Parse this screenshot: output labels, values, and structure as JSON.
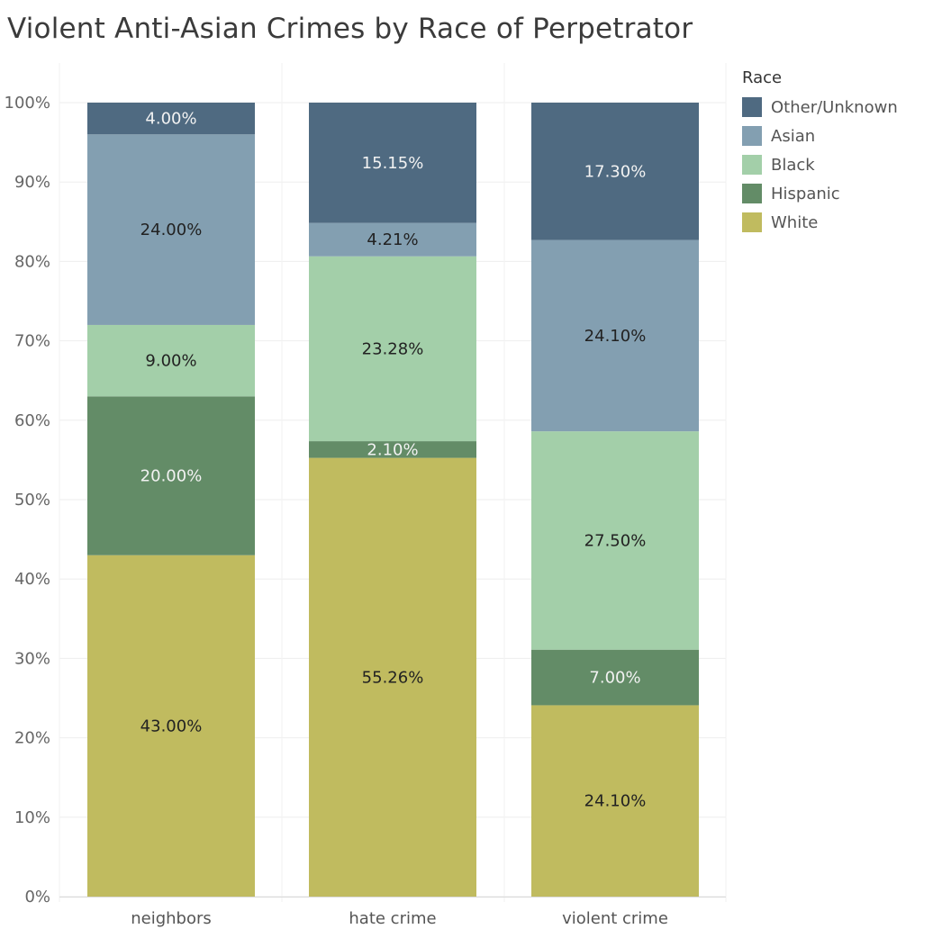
{
  "chart_data": {
    "type": "bar",
    "stacked": true,
    "title": "Violent Anti-Asian Crimes by Race of Perpetrator",
    "xlabel": "",
    "ylabel": "",
    "ylim": [
      0,
      100
    ],
    "yticks": [
      "0%",
      "10%",
      "20%",
      "30%",
      "40%",
      "50%",
      "60%",
      "70%",
      "80%",
      "90%",
      "100%"
    ],
    "grid": true,
    "legend_title": "Race",
    "legend_position": "top-right",
    "categories": [
      "neighbors",
      "hate crime",
      "violent crime"
    ],
    "series": [
      {
        "name": "White",
        "color": "#c0bb5f",
        "label_color": "#222222",
        "values": [
          43.0,
          55.26,
          24.1
        ],
        "labels": [
          "43.00%",
          "55.26%",
          "24.10%"
        ]
      },
      {
        "name": "Hispanic",
        "color": "#638c67",
        "label_color": "#f2f2f2",
        "values": [
          20.0,
          2.1,
          7.0
        ],
        "labels": [
          "20.00%",
          "2.10%",
          "7.00%"
        ]
      },
      {
        "name": "Black",
        "color": "#a3cfa9",
        "label_color": "#222222",
        "values": [
          9.0,
          23.28,
          27.5
        ],
        "labels": [
          "9.00%",
          "23.28%",
          "27.50%"
        ]
      },
      {
        "name": "Asian",
        "color": "#839fb1",
        "label_color": "#222222",
        "values": [
          24.0,
          4.21,
          24.1
        ],
        "labels": [
          "24.00%",
          "4.21%",
          "24.10%"
        ]
      },
      {
        "name": "Other/Unknown",
        "color": "#4f6a81",
        "label_color": "#f2f2f2",
        "values": [
          4.0,
          15.15,
          17.3
        ],
        "labels": [
          "4.00%",
          "15.15%",
          "17.30%"
        ]
      }
    ],
    "legend_order": [
      "Other/Unknown",
      "Asian",
      "Black",
      "Hispanic",
      "White"
    ]
  }
}
